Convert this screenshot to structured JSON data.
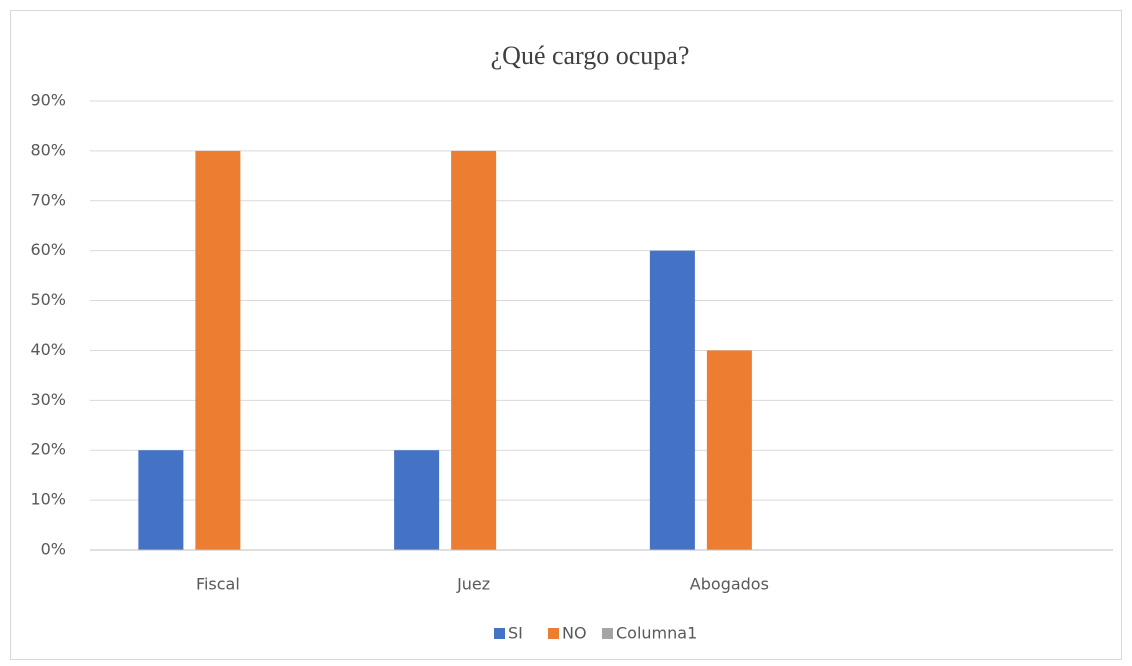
{
  "chart_data": {
    "type": "bar",
    "title": "¿Qué cargo ocupa?",
    "categories": [
      "Fiscal",
      "Juez",
      "Abogados",
      null
    ],
    "series": [
      {
        "name": "SI",
        "color": "#4472c4",
        "values": [
          20,
          20,
          60,
          null
        ]
      },
      {
        "name": "NO",
        "color": "#ed7d31",
        "values": [
          80,
          80,
          40,
          null
        ]
      },
      {
        "name": "Columna1",
        "color": "#a5a5a5",
        "values": [
          null,
          null,
          null,
          null
        ]
      }
    ],
    "ylim": [
      0,
      90
    ],
    "yticks": [
      {
        "value": 0,
        "label": "0%"
      },
      {
        "value": 10,
        "label": "10%"
      },
      {
        "value": 20,
        "label": "20%"
      },
      {
        "value": 30,
        "label": "30%"
      },
      {
        "value": 40,
        "label": "40%"
      },
      {
        "value": 50,
        "label": "50%"
      },
      {
        "value": 60,
        "label": "60%"
      },
      {
        "value": 70,
        "label": "70%"
      },
      {
        "value": 80,
        "label": "80%"
      },
      {
        "value": 90,
        "label": "90%"
      }
    ],
    "grid": true,
    "legend": "bottom"
  }
}
